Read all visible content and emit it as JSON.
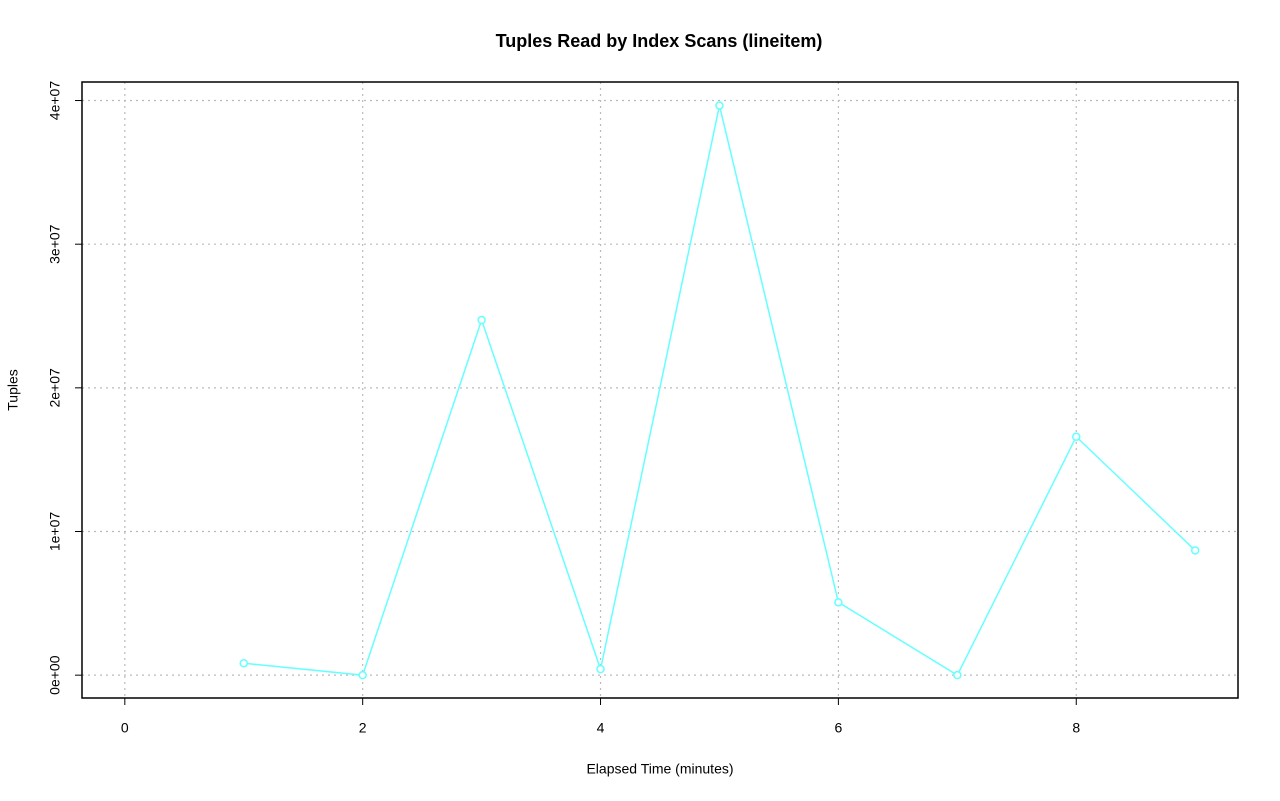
{
  "chart_data": {
    "type": "line",
    "title": "Tuples Read by Index Scans (lineitem)",
    "x_label": "Elapsed Time (minutes)",
    "y_label": "Tuples",
    "x": [
      1,
      2,
      3,
      4,
      5,
      6,
      7,
      8,
      9
    ],
    "series": [
      {
        "name": "Tuples",
        "color": "#66ffff",
        "values": [
          830000,
          0,
          24720000,
          420000,
          39650000,
          5070000,
          0,
          16600000,
          8680000
        ]
      }
    ],
    "xlim": [
      -0.36,
      9.36
    ],
    "xticks": [
      0,
      2,
      4,
      6,
      8
    ],
    "ylim": [
      -1590000,
      41290000
    ],
    "yticks": [
      {
        "value": 0,
        "label": "0e+00"
      },
      {
        "value": 10000000,
        "label": "1e+07"
      },
      {
        "value": 20000000,
        "label": "2e+07"
      },
      {
        "value": 30000000,
        "label": "3e+07"
      },
      {
        "value": 40000000,
        "label": "4e+07"
      }
    ],
    "grid": true
  }
}
